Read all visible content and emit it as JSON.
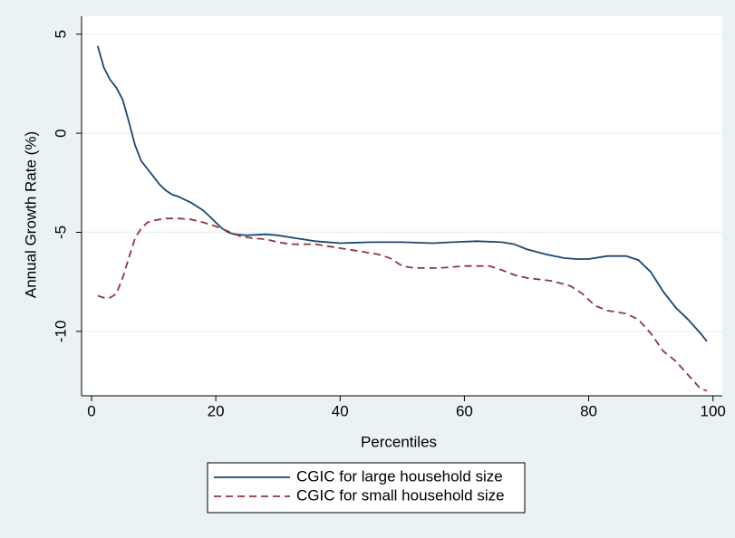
{
  "chart_data": {
    "type": "line",
    "xlabel": "Percentiles",
    "ylabel": "Annual Growth Rate (%)",
    "xlim": [
      -1.6,
      101.5
    ],
    "ylim": [
      -13.25,
      5.9
    ],
    "xticks": [
      0,
      20,
      40,
      60,
      80,
      100
    ],
    "yticks": [
      5,
      0,
      -5,
      -10
    ],
    "grid": true,
    "legend": "bottom",
    "series": [
      {
        "name": "CGIC for large household size",
        "color": "#1a476f",
        "dash": false,
        "x": [
          1,
          2,
          3,
          4,
          5,
          6,
          7,
          8,
          9,
          10,
          11,
          12,
          13,
          14,
          15,
          16,
          17,
          18,
          19,
          20,
          21,
          22,
          23,
          25,
          28,
          30,
          33,
          36,
          40,
          45,
          50,
          55,
          58,
          62,
          66,
          68,
          70,
          73,
          76,
          78,
          80,
          83,
          86,
          88,
          90,
          92,
          94,
          96,
          98,
          99
        ],
        "values": [
          4.4,
          3.3,
          2.7,
          2.3,
          1.7,
          0.6,
          -0.6,
          -1.4,
          -1.8,
          -2.2,
          -2.6,
          -2.9,
          -3.1,
          -3.2,
          -3.35,
          -3.5,
          -3.7,
          -3.9,
          -4.2,
          -4.5,
          -4.8,
          -5.0,
          -5.1,
          -5.15,
          -5.1,
          -5.15,
          -5.3,
          -5.45,
          -5.55,
          -5.5,
          -5.5,
          -5.55,
          -5.5,
          -5.45,
          -5.5,
          -5.6,
          -5.85,
          -6.1,
          -6.3,
          -6.35,
          -6.35,
          -6.2,
          -6.2,
          -6.4,
          -7.0,
          -8.0,
          -8.8,
          -9.4,
          -10.1,
          -10.5
        ]
      },
      {
        "name": "CGIC for small household size",
        "color": "#90353b",
        "dash": true,
        "x": [
          1,
          2,
          3,
          4,
          5,
          6,
          7,
          8,
          9,
          10,
          12,
          14,
          16,
          18,
          20,
          22,
          24,
          26,
          28,
          30,
          32,
          36,
          38,
          40,
          42,
          44,
          46,
          48,
          50,
          52,
          56,
          58,
          60,
          64,
          66,
          68,
          70,
          74,
          77,
          79,
          81,
          83,
          86,
          88,
          90,
          92,
          94,
          96,
          98,
          99
        ],
        "values": [
          -8.2,
          -8.3,
          -8.3,
          -8.1,
          -7.3,
          -6.3,
          -5.3,
          -4.8,
          -4.5,
          -4.4,
          -4.3,
          -4.3,
          -4.35,
          -4.5,
          -4.7,
          -4.95,
          -5.2,
          -5.3,
          -5.35,
          -5.5,
          -5.6,
          -5.6,
          -5.7,
          -5.8,
          -5.9,
          -6.0,
          -6.1,
          -6.3,
          -6.7,
          -6.8,
          -6.8,
          -6.75,
          -6.7,
          -6.7,
          -6.9,
          -7.15,
          -7.3,
          -7.45,
          -7.7,
          -8.1,
          -8.7,
          -8.95,
          -9.1,
          -9.4,
          -10.1,
          -11.0,
          -11.5,
          -12.2,
          -12.9,
          -13.0
        ]
      }
    ]
  }
}
